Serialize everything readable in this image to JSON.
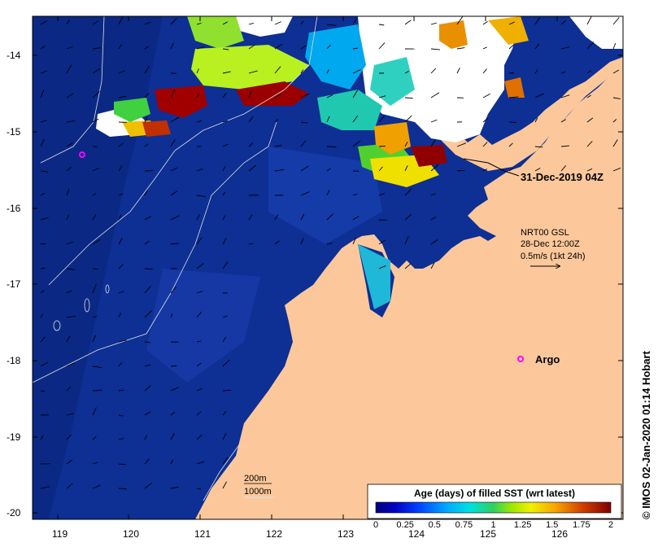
{
  "map": {
    "lon_ticks": [
      "119",
      "120",
      "121",
      "122",
      "123",
      "124",
      "125",
      "126"
    ],
    "lat_ticks": [
      "-14",
      "-15",
      "-16",
      "-17",
      "-18",
      "-19",
      "-20"
    ],
    "lon_range": [
      118.6,
      126.7
    ],
    "lat_range": [
      -20.1,
      -13.5
    ]
  },
  "annotations": {
    "pass_time": "31-Dec-2019 04Z",
    "current_model": "NRT00 GSL",
    "current_time": "28-Dec 12:00Z",
    "current_scale": "0.5m/s (1kt 24h)",
    "argo_label": "Argo",
    "isobath_200": "200m",
    "isobath_1000": "1000m",
    "credit": "© IMOS 02-Jan-2020 01:14 Hobart"
  },
  "legend": {
    "title": "Age (days) of filled SST (wrt latest)",
    "tick_labels": [
      "0",
      "0.25",
      "0.5",
      "0.75",
      "1",
      "1.25",
      "1.5",
      "1.75",
      "2"
    ],
    "colors": [
      "#00007f",
      "#0000b0",
      "#0020e0",
      "#0070ff",
      "#00b8ff",
      "#00e8d8",
      "#30d070",
      "#80e020",
      "#c8f000",
      "#f8f000",
      "#f8b800",
      "#e07000",
      "#c03000",
      "#800000"
    ]
  },
  "colors": {
    "ocean_deep": "#0a2a8a",
    "ocean_mid": "#1b3fa8",
    "land": "#fcc89b",
    "cloud": "#ffffff",
    "argo": "#ff00ff"
  }
}
